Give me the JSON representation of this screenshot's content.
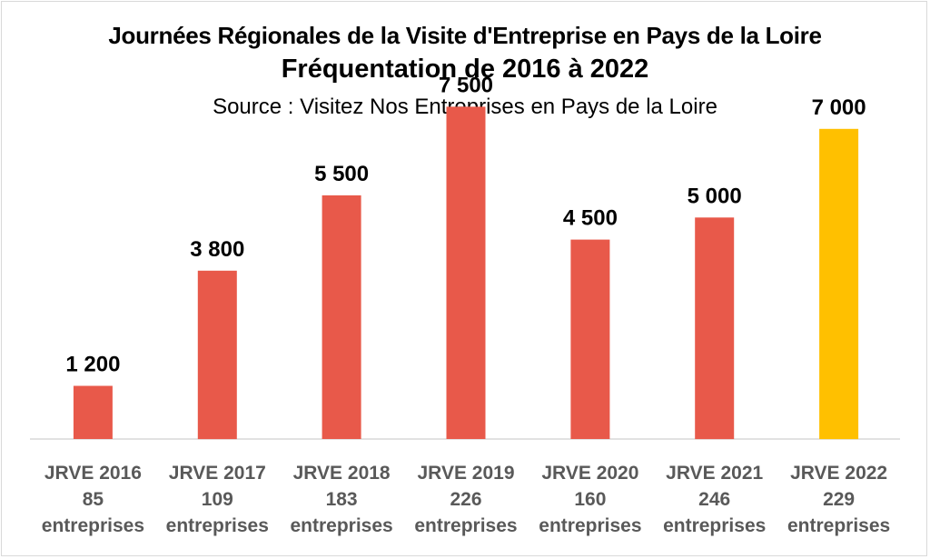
{
  "chart_data": {
    "type": "bar",
    "title": "Journées Régionales de la Visite d'Entreprise en Pays de la Loire",
    "subtitle": "Fréquentation de 2016 à 2022",
    "source": "Source : Visitez Nos Entreprises en Pays de la Loire",
    "categories": [
      [
        "JRVE 2016",
        "85",
        "entreprises"
      ],
      [
        "JRVE 2017",
        "109",
        "entreprises"
      ],
      [
        "JRVE 2018",
        "183",
        "entreprises"
      ],
      [
        "JRVE 2019",
        "226",
        "entreprises"
      ],
      [
        "JRVE 2020",
        "160",
        "entreprises"
      ],
      [
        "JRVE 2021",
        "246",
        "entreprises"
      ],
      [
        "JRVE 2022",
        "229",
        "entreprises"
      ]
    ],
    "values": [
      1200,
      3800,
      5500,
      7500,
      4500,
      5000,
      7000
    ],
    "value_labels": [
      "1 200",
      "3 800",
      "5 500",
      "7 500",
      "4 500",
      "5 000",
      "7 000"
    ],
    "bar_colors": [
      "#e8594a",
      "#e8594a",
      "#e8594a",
      "#e8594a",
      "#e8594a",
      "#e8594a",
      "#ffc000"
    ],
    "ylim": [
      0,
      8000
    ],
    "grid": false,
    "legend": "none"
  }
}
